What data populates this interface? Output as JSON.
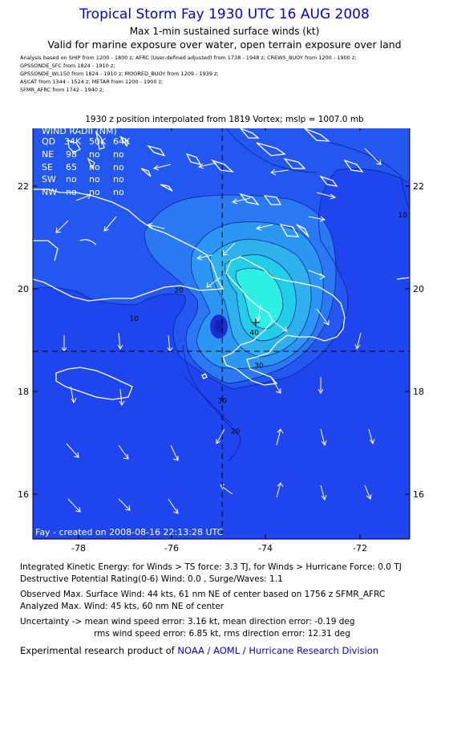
{
  "header": {
    "title": "Tropical Storm Fay 1930 UTC 16 AUG 2008",
    "subtitle": "Max 1-min sustained surface winds (kt)",
    "validity": "Valid for marine exposure over water, open terrain exposure over land"
  },
  "analysis_lines": [
    "Analysis based on  SHIP from 1200 - 1800 z;  AFRC (User-defined adjusted) from 1738 - 1948 z;  CREWS_BUOY from 1200 - 1900 z;",
    "GPSSONDE_SFC from 1824 - 1910 z;",
    "GPSSONDE_WL150 from 1824 - 1910 z;  MOORED_BUOY from 1209 - 1939 z;",
    "ASCAT from 1344 - 1524 z;  METAR from 1200 - 1900 z;",
    "SFMR_AFRC from 1742 - 1940 z;"
  ],
  "interpolation": "1930 z position interpolated from 1819 Vortex; mslp = 1007.0 mb",
  "map": {
    "lon_ticks": [
      "-78",
      "-76",
      "-74",
      "-72"
    ],
    "lat_ticks": [
      "22",
      "20",
      "18",
      "16"
    ],
    "lon_range": [
      -79.0,
      -71.0
    ],
    "lat_range": [
      15.2,
      24.0
    ],
    "center": {
      "lon": -74.27,
      "lat": 19.81
    },
    "crosshair": {
      "lon": -74.98,
      "lat": 19.2
    },
    "contour_labels": [
      {
        "text": "10",
        "lon": -76.85,
        "lat": 19.85
      },
      {
        "text": "10",
        "lon": -71.15,
        "lat": 22.05
      },
      {
        "text": "20",
        "lon": -75.9,
        "lat": 20.45
      },
      {
        "text": "30",
        "lon": -74.2,
        "lat": 18.85
      },
      {
        "text": "40",
        "lon": -74.3,
        "lat": 19.55
      },
      {
        "text": "30",
        "lon": -74.98,
        "lat": 18.1
      },
      {
        "text": "20",
        "lon": -74.7,
        "lat": 17.45
      }
    ],
    "wind_radii": {
      "title": "WIND RADII (NM)",
      "header": [
        "QD",
        "34K",
        "50K",
        "64K"
      ],
      "rows": [
        [
          "NE",
          "98",
          "no",
          "no"
        ],
        [
          "SE",
          "65",
          "no",
          "no"
        ],
        [
          "SW",
          "no",
          "no",
          "no"
        ],
        [
          "NW",
          "no",
          "no",
          "no"
        ]
      ]
    },
    "credit": "Fay - created on 2008-08-16 22:13:28 UTC",
    "colors": {
      "outer": "#1f45ee",
      "ring10": "#2464f2",
      "ring20": "#2a86f4",
      "ring30": "#2ea8ee",
      "ring40": "#1fc9e6",
      "core": "#2cf0e2",
      "land": "#ffffff"
    }
  },
  "info": {
    "ike": "Integrated Kinetic Energy:  for Winds > TS force: 3.3 TJ,  for Winds > Hurricane Force: 0.0 TJ",
    "dpr": "Destructive Potential Rating(0-6)   Wind: 0.0 , Surge/Waves: 1.1",
    "observed_max": "Observed Max. Surface Wind: 44 kts, 61 nm NE of center based on 1756 z SFMR_AFRC",
    "analyzed_max": "Analyzed Max. Wind: 45 kts, 60 nm NE of center",
    "uncertainty_1": "Uncertainty -> mean wind speed error: 3.16 kt,   mean direction error:  -0.19 deg",
    "uncertainty_2": "rms wind speed error: 6.85 kt,   rms direction error: 12.31 deg",
    "credit_prefix": "Experimental research product of",
    "credit_org": "NOAA / AOML / Hurricane Research Division"
  }
}
